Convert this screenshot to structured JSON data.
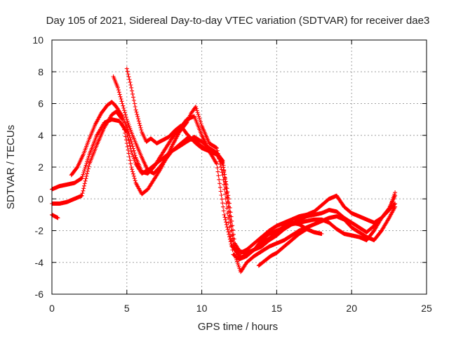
{
  "chart_data": {
    "type": "scatter",
    "title": "Day 105 of 2021, Sidereal Day-to-day VTEC variation (SDTVAR) for receiver dae3",
    "xlabel": "GPS time / hours",
    "ylabel": "SDTVAR / TECUs",
    "xlim": [
      0,
      25
    ],
    "ylim": [
      -6,
      10
    ],
    "xticks": [
      0,
      5,
      10,
      15,
      20,
      25
    ],
    "yticks": [
      -6,
      -4,
      -2,
      0,
      2,
      4,
      6,
      8,
      10
    ],
    "grid": true,
    "marker": "plus",
    "color": "#ff0000",
    "series": [
      {
        "x": [
          0.0,
          0.5,
          1.0,
          1.5,
          2.0,
          2.5,
          3.0,
          3.5,
          4.0,
          4.5,
          5.0,
          5.3,
          5.6,
          6.0,
          6.4,
          6.8,
          7.2,
          7.6,
          8.0,
          8.5,
          9.0,
          9.5,
          10.0,
          10.5,
          11.0,
          11.5,
          12.0,
          12.5,
          13.0,
          13.5,
          14.0,
          14.5,
          15.0,
          15.5,
          16.0,
          16.5,
          17.0,
          17.5,
          18.0,
          18.5,
          19.0,
          19.5,
          20.0,
          20.5,
          21.0,
          21.5,
          22.0,
          22.5,
          22.9
        ],
        "y": [
          0.6,
          0.8,
          0.9,
          1.0,
          1.3,
          2.8,
          4.0,
          4.8,
          5.0,
          4.9,
          4.2,
          3.0,
          2.2,
          1.6,
          1.8,
          2.1,
          2.4,
          2.7,
          3.0,
          3.4,
          3.8,
          3.7,
          3.3,
          3.0,
          2.2,
          -1.0,
          -3.0,
          -3.3,
          -3.4,
          -3.2,
          -3.0,
          -2.6,
          -2.3,
          -1.9,
          -1.6,
          -1.3,
          -1.1,
          -1.0,
          -0.9,
          -0.7,
          -0.8,
          -1.2,
          -1.5,
          -1.8,
          -2.1,
          -1.7,
          -1.2,
          -0.7,
          -0.3
        ]
      },
      {
        "x": [
          0.0,
          0.5,
          1.0,
          1.5,
          2.0,
          2.5,
          3.0,
          3.5,
          4.0,
          4.3,
          4.7,
          5.0,
          5.3,
          5.6,
          6.0,
          6.4,
          6.8,
          7.2,
          7.6,
          8.0,
          8.5,
          9.0,
          9.3,
          9.6,
          10.0,
          10.5,
          11.0,
          11.4,
          11.8,
          12.1,
          12.5,
          13.0,
          13.5,
          14.0,
          14.5,
          15.0,
          15.5,
          16.0,
          16.5,
          17.0,
          17.5,
          18.0,
          18.5,
          19.0,
          19.5,
          20.0,
          20.5,
          21.0,
          21.5,
          22.0,
          22.5,
          22.9
        ],
        "y": [
          -0.3,
          -0.3,
          -0.2,
          0.0,
          0.2,
          2.2,
          3.4,
          4.5,
          5.3,
          5.5,
          5.0,
          3.5,
          2.0,
          1.0,
          0.3,
          0.6,
          1.2,
          1.8,
          2.5,
          3.3,
          4.2,
          4.8,
          5.4,
          5.8,
          4.6,
          3.5,
          3.2,
          1.5,
          -1.5,
          -3.5,
          -3.8,
          -3.6,
          -3.2,
          -2.6,
          -2.2,
          -2.0,
          -1.8,
          -1.6,
          -1.5,
          -1.4,
          -1.3,
          -1.3,
          -1.5,
          -1.9,
          -2.2,
          -2.3,
          -2.4,
          -2.6,
          -2.0,
          -1.2,
          -0.6,
          0.2
        ]
      },
      {
        "x": [
          1.3,
          1.7,
          2.1,
          2.5,
          2.9,
          3.3,
          3.7,
          4.0,
          4.3,
          4.7,
          5.0,
          5.3,
          5.6,
          6.0,
          6.4,
          6.8,
          7.2,
          7.6,
          8.0,
          8.5,
          9.0,
          9.5,
          10.0,
          10.5,
          11.0,
          11.4,
          11.8,
          12.2,
          12.6,
          13.0,
          13.5,
          14.0,
          14.5,
          15.0,
          15.5,
          16.0,
          16.5,
          17.0,
          17.5,
          18.0,
          18.5,
          19.0,
          19.5,
          20.0,
          20.5,
          21.0,
          21.5,
          22.0,
          22.5,
          22.9
        ],
        "y": [
          1.5,
          2.0,
          2.8,
          3.8,
          4.7,
          5.4,
          5.9,
          6.1,
          5.8,
          5.2,
          4.5,
          3.6,
          2.6,
          1.7,
          1.6,
          2.0,
          2.6,
          3.2,
          3.8,
          4.4,
          5.0,
          5.2,
          4.0,
          3.0,
          2.8,
          2.2,
          0.0,
          -2.8,
          -3.4,
          -3.2,
          -2.8,
          -2.4,
          -2.0,
          -1.7,
          -1.5,
          -1.3,
          -1.1,
          -1.0,
          -0.8,
          -0.4,
          0.0,
          0.2,
          -0.5,
          -0.9,
          -1.1,
          -1.3,
          -1.5,
          -1.2,
          -0.7,
          0.4
        ]
      },
      {
        "x": [
          4.1,
          4.4,
          4.7,
          5.0,
          5.3,
          5.6,
          6.0,
          6.4,
          6.8,
          7.2,
          7.6,
          8.0,
          8.5,
          9.0,
          9.5,
          10.0,
          10.5,
          11.0,
          11.4,
          11.8,
          12.2,
          12.6,
          13.0,
          13.5,
          14.0,
          14.5,
          15.0,
          15.5,
          16.0,
          16.5,
          17.0,
          17.5,
          18.0,
          18.5,
          19.0,
          19.5,
          20.0,
          20.5,
          21.0,
          21.5,
          22.0,
          22.5,
          22.9
        ],
        "y": [
          7.7,
          7.0,
          6.0,
          5.0,
          4.2,
          3.5,
          2.6,
          1.8,
          1.6,
          2.0,
          2.5,
          3.0,
          3.3,
          3.6,
          3.9,
          3.6,
          3.2,
          2.9,
          2.4,
          -0.5,
          -3.5,
          -4.6,
          -4.0,
          -3.6,
          -3.3,
          -3.0,
          -2.8,
          -2.6,
          -2.3,
          -2.0,
          -1.8,
          -1.6,
          -1.4,
          -1.2,
          -1.1,
          -1.3,
          -1.8,
          -2.1,
          -2.4,
          -2.6,
          -2.0,
          -1.2,
          -0.5
        ]
      },
      {
        "x": [
          5.0,
          5.3,
          5.6,
          6.0,
          6.3,
          6.6,
          7.0,
          7.4,
          7.8,
          8.2,
          8.6,
          9.0,
          9.3,
          9.6,
          10.0,
          10.5,
          11.0,
          11.4,
          11.8,
          12.2,
          12.6,
          13.0,
          13.5,
          14.0,
          14.5,
          15.0,
          15.5,
          16.0,
          16.5,
          17.0,
          17.5,
          18.0
        ],
        "y": [
          8.2,
          7.0,
          5.6,
          4.2,
          3.6,
          3.8,
          3.5,
          3.7,
          3.9,
          4.3,
          4.6,
          4.1,
          3.8,
          3.5,
          3.2,
          3.0,
          2.8,
          2.3,
          -0.8,
          -3.2,
          -3.7,
          -3.5,
          -3.2,
          -2.8,
          -2.5,
          -2.1,
          -1.7,
          -1.5,
          -1.6,
          -1.9,
          -2.1,
          -2.2
        ]
      },
      {
        "x": [
          0.0,
          0.2,
          0.4
        ],
        "y": [
          -1.0,
          -1.1,
          -1.2
        ]
      },
      {
        "x": [
          13.8,
          14.2,
          14.6,
          15.0,
          15.5,
          16.0,
          16.5,
          17.0
        ],
        "y": [
          -4.2,
          -3.9,
          -3.6,
          -3.4,
          -3.0,
          -2.6,
          -2.2,
          -1.9
        ]
      }
    ]
  }
}
